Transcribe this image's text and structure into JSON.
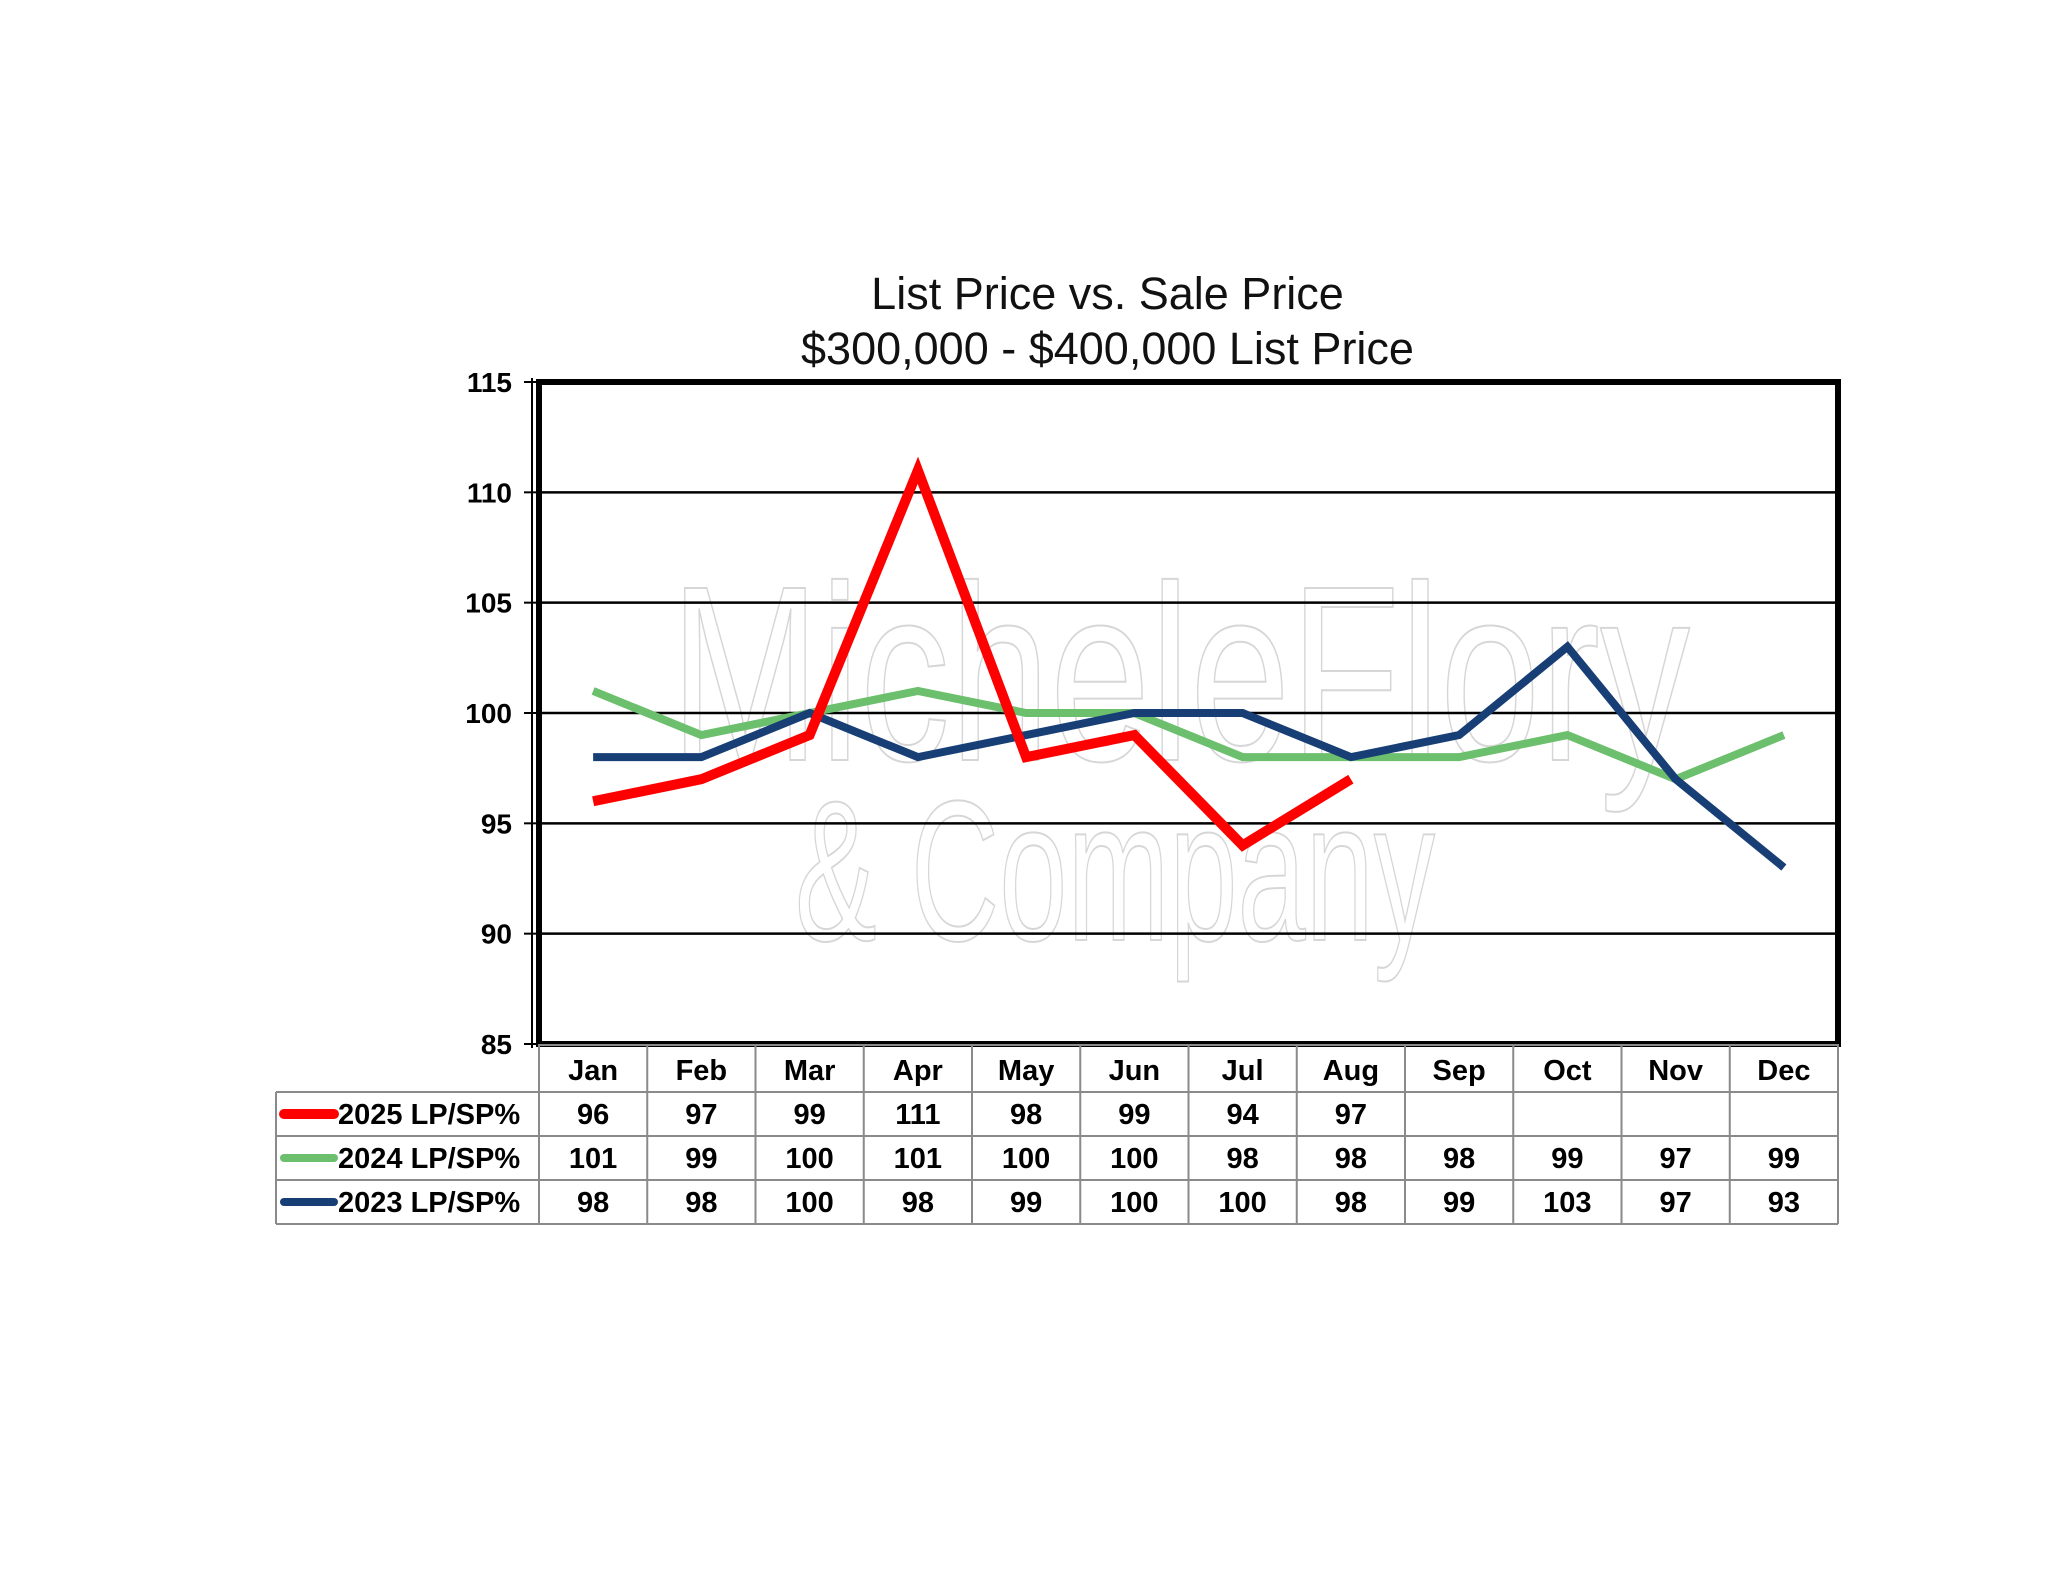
{
  "chart_data": {
    "type": "line",
    "title": "List Price vs. Sale Price",
    "subtitle": "$300,000 - $400,000  List Price",
    "categories": [
      "Jan",
      "Feb",
      "Mar",
      "Apr",
      "May",
      "Jun",
      "Jul",
      "Aug",
      "Sep",
      "Oct",
      "Nov",
      "Dec"
    ],
    "ylim": [
      85,
      115
    ],
    "yticks": [
      "85",
      "90",
      "95",
      "100",
      "105",
      "110",
      "115"
    ],
    "grid": true,
    "legend": "data-table-left",
    "watermark_lines": [
      "MicheleFlory",
      "& Company"
    ],
    "series": [
      {
        "name": "2025 LP/SP%",
        "color": "#ff0000",
        "values": [
          96,
          97,
          99,
          111,
          98,
          99,
          94,
          97,
          null,
          null,
          null,
          null
        ],
        "labels": [
          "96",
          "97",
          "99",
          "111",
          "98",
          "99",
          "94",
          "97",
          "",
          "",
          "",
          ""
        ]
      },
      {
        "name": "2024 LP/SP%",
        "color": "#6cbf6c",
        "values": [
          101,
          99,
          100,
          101,
          100,
          100,
          98,
          98,
          98,
          99,
          97,
          99
        ],
        "labels": [
          "101",
          "99",
          "100",
          "101",
          "100",
          "100",
          "98",
          "98",
          "98",
          "99",
          "97",
          "99"
        ]
      },
      {
        "name": "2023 LP/SP%",
        "color": "#173f75",
        "values": [
          98,
          98,
          100,
          98,
          99,
          100,
          100,
          98,
          99,
          103,
          97,
          93
        ],
        "labels": [
          "98",
          "98",
          "100",
          "98",
          "99",
          "100",
          "100",
          "98",
          "99",
          "103",
          "97",
          "93"
        ]
      }
    ]
  }
}
